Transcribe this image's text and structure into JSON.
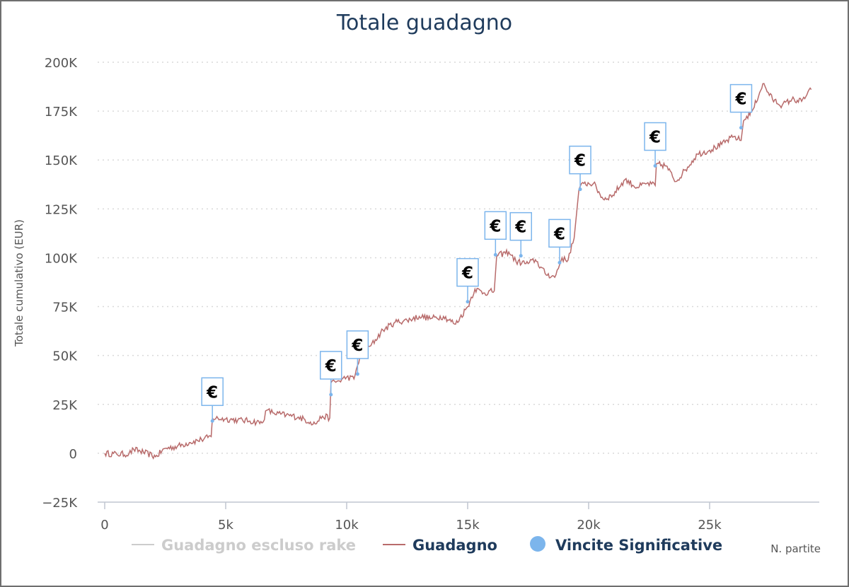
{
  "chart_data": {
    "type": "line",
    "title": "Totale guadagno",
    "xlabel": "N. partite",
    "ylabel": "Totale cumulativo (EUR)",
    "xlim": [
      0,
      29400
    ],
    "ylim": [
      -25000,
      200000
    ],
    "x_ticks": [
      0,
      5000,
      10000,
      15000,
      20000,
      25000
    ],
    "x_tick_labels": [
      "0",
      "5k",
      "10k",
      "15k",
      "20k",
      "25k"
    ],
    "y_ticks": [
      -25000,
      0,
      25000,
      50000,
      75000,
      100000,
      125000,
      150000,
      175000,
      200000
    ],
    "y_tick_labels": [
      "−25K",
      "0",
      "25K",
      "50K",
      "75K",
      "100K",
      "125K",
      "150K",
      "175K",
      "200K"
    ],
    "grid": "horizontal dotted",
    "legend_position": "bottom",
    "legend": [
      {
        "label": "Guadagno escluso rake",
        "color": "#cccccc",
        "marker": "line",
        "hidden": true
      },
      {
        "label": "Guadagno",
        "color": "#1f3b5c",
        "marker": "line",
        "marker_color": "#b86b6b"
      },
      {
        "label": "Vincite Significative",
        "color": "#1f3b5c",
        "marker": "circle",
        "marker_color": "#7cb5ec"
      }
    ],
    "series": [
      {
        "name": "Guadagno",
        "color": "#b86b6b",
        "points": [
          [
            0,
            0
          ],
          [
            500,
            -500
          ],
          [
            1000,
            -300
          ],
          [
            1200,
            2000
          ],
          [
            1600,
            500
          ],
          [
            2100,
            -1800
          ],
          [
            2500,
            2500
          ],
          [
            3000,
            3500
          ],
          [
            3500,
            5500
          ],
          [
            4000,
            7000
          ],
          [
            4400,
            8500
          ],
          [
            4450,
            18000
          ],
          [
            5000,
            17500
          ],
          [
            5500,
            17000
          ],
          [
            6000,
            16500
          ],
          [
            6500,
            15500
          ],
          [
            6700,
            22000
          ],
          [
            7000,
            20500
          ],
          [
            7500,
            19500
          ],
          [
            8000,
            18500
          ],
          [
            8500,
            16000
          ],
          [
            8700,
            15000
          ],
          [
            9000,
            19000
          ],
          [
            9300,
            18000
          ],
          [
            9350,
            36000
          ],
          [
            9700,
            37000
          ],
          [
            10000,
            39000
          ],
          [
            10300,
            38000
          ],
          [
            10450,
            45000
          ],
          [
            10600,
            52000
          ],
          [
            11000,
            55000
          ],
          [
            11500,
            63000
          ],
          [
            12000,
            67000
          ],
          [
            12500,
            68000
          ],
          [
            13000,
            70000
          ],
          [
            13500,
            69000
          ],
          [
            14000,
            70000
          ],
          [
            14500,
            66000
          ],
          [
            15000,
            75000
          ],
          [
            15300,
            84000
          ],
          [
            15700,
            82000
          ],
          [
            16100,
            83000
          ],
          [
            16200,
            101000
          ],
          [
            16700,
            103000
          ],
          [
            17000,
            98000
          ],
          [
            17500,
            97000
          ],
          [
            17800,
            99000
          ],
          [
            18200,
            92000
          ],
          [
            18600,
            90000
          ],
          [
            18900,
            100000
          ],
          [
            19100,
            98000
          ],
          [
            19400,
            110000
          ],
          [
            19600,
            135000
          ],
          [
            19800,
            138000
          ],
          [
            20200,
            138000
          ],
          [
            20600,
            130000
          ],
          [
            21000,
            132000
          ],
          [
            21500,
            140000
          ],
          [
            22000,
            136000
          ],
          [
            22400,
            138000
          ],
          [
            22750,
            137000
          ],
          [
            22800,
            148000
          ],
          [
            23200,
            147000
          ],
          [
            23600,
            139000
          ],
          [
            24000,
            145000
          ],
          [
            24500,
            153000
          ],
          [
            25000,
            155000
          ],
          [
            25500,
            158000
          ],
          [
            26000,
            162000
          ],
          [
            26300,
            160000
          ],
          [
            26400,
            170000
          ],
          [
            26800,
            176000
          ],
          [
            27200,
            189000
          ],
          [
            27600,
            181000
          ],
          [
            28000,
            178000
          ],
          [
            28400,
            181000
          ],
          [
            28800,
            180000
          ],
          [
            29200,
            186000
          ]
        ]
      }
    ],
    "flags": {
      "name": "Vincite Significative",
      "label": "€",
      "color": "#7cb5ec",
      "points": [
        [
          4450,
          16500
        ],
        [
          9350,
          30000
        ],
        [
          10450,
          40500
        ],
        [
          15000,
          77500
        ],
        [
          16150,
          101500
        ],
        [
          17200,
          101000
        ],
        [
          18800,
          97500
        ],
        [
          19650,
          135000
        ],
        [
          22750,
          147000
        ],
        [
          26300,
          166500
        ]
      ]
    }
  }
}
